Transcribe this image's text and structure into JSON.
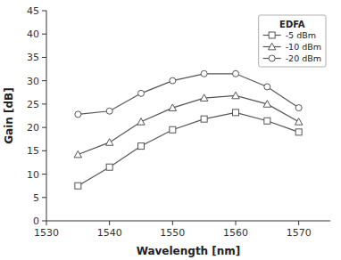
{
  "chart_data": {
    "type": "line",
    "xlabel": "Wavelength [nm]",
    "ylabel": "Gain [dB]",
    "legend_title": "EDFA",
    "legend": "upper right",
    "grid": false,
    "x": [
      1535,
      1540,
      1545,
      1550,
      1555,
      1560,
      1565,
      1570
    ],
    "series": [
      {
        "name": "-5 dBm",
        "marker": "square",
        "color": "#555555",
        "values": [
          7.5,
          11.5,
          16.0,
          19.5,
          21.8,
          23.2,
          21.4,
          19.0
        ]
      },
      {
        "name": "-10 dBm",
        "marker": "triangle",
        "color": "#555555",
        "values": [
          14.2,
          16.8,
          21.2,
          24.2,
          26.3,
          26.8,
          25.0,
          21.2
        ]
      },
      {
        "name": "-20 dBm",
        "marker": "circle",
        "color": "#555555",
        "values": [
          22.8,
          23.5,
          27.3,
          30.0,
          31.5,
          31.5,
          28.7,
          24.2
        ]
      }
    ],
    "xlim": [
      1530,
      1575
    ],
    "ylim": [
      0,
      45
    ],
    "xticks": [
      1530,
      1540,
      1550,
      1560,
      1570
    ],
    "yticks": [
      0,
      5,
      10,
      15,
      20,
      25,
      30,
      35,
      40,
      45
    ]
  }
}
